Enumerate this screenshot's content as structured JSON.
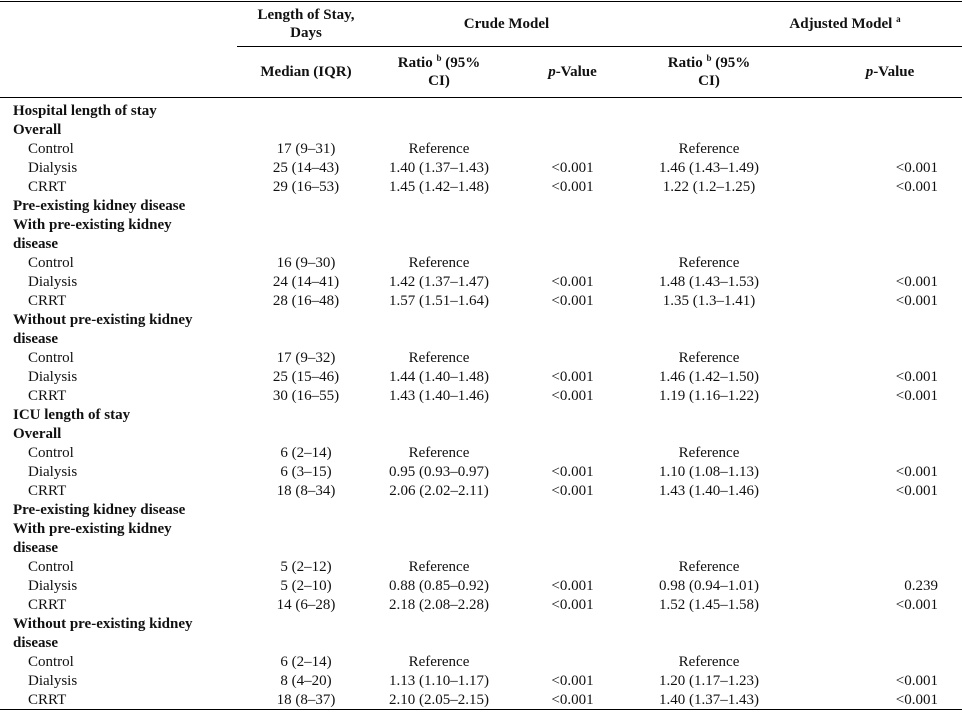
{
  "header": {
    "los_line1": "Length of Stay,",
    "los_line2": "Days",
    "crude_model": "Crude Model",
    "adjusted_model": "Adjusted Model",
    "adjusted_sup": "a",
    "median_iqr": "Median (IQR)",
    "ratio_label": "Ratio",
    "ratio_sup": "b",
    "ratio_line1_rest": "(95%",
    "ratio_line2": "CI)",
    "p_italic": "p",
    "p_rest": "-Value"
  },
  "rows": [
    {
      "label": "Hospital length of stay",
      "style": "sec"
    },
    {
      "label": "Overall",
      "style": "sec"
    },
    {
      "label": "Control",
      "style": "sub",
      "median": "17 (9–31)",
      "crude_ratio": "Reference",
      "crude_p": "",
      "adj_ratio": "Reference",
      "adj_p": ""
    },
    {
      "label": "Dialysis",
      "style": "sub",
      "median": "25 (14–43)",
      "crude_ratio": "1.40 (1.37–1.43)",
      "crude_p": "<0.001",
      "adj_ratio": "1.46 (1.43–1.49)",
      "adj_p": "<0.001"
    },
    {
      "label": "CRRT",
      "style": "sub",
      "median": "29 (16–53)",
      "crude_ratio": "1.45 (1.42–1.48)",
      "crude_p": "<0.001",
      "adj_ratio": "1.22 (1.2–1.25)",
      "adj_p": "<0.001"
    },
    {
      "label": "Pre-existing kidney disease",
      "style": "sec"
    },
    {
      "label": "With pre-existing kidney",
      "style": "sec"
    },
    {
      "label": "disease",
      "style": "sec"
    },
    {
      "label": "Control",
      "style": "sub",
      "median": "16 (9–30)",
      "crude_ratio": "Reference",
      "crude_p": "",
      "adj_ratio": "Reference",
      "adj_p": ""
    },
    {
      "label": "Dialysis",
      "style": "sub",
      "median": "24 (14–41)",
      "crude_ratio": "1.42 (1.37–1.47)",
      "crude_p": "<0.001",
      "adj_ratio": "1.48 (1.43–1.53)",
      "adj_p": "<0.001"
    },
    {
      "label": "CRRT",
      "style": "sub",
      "median": "28 (16–48)",
      "crude_ratio": "1.57 (1.51–1.64)",
      "crude_p": "<0.001",
      "adj_ratio": "1.35 (1.3–1.41)",
      "adj_p": "<0.001"
    },
    {
      "label": "Without pre-existing kidney",
      "style": "sec"
    },
    {
      "label": "disease",
      "style": "sec"
    },
    {
      "label": "Control",
      "style": "sub",
      "median": "17 (9–32)",
      "crude_ratio": "Reference",
      "crude_p": "",
      "adj_ratio": "Reference",
      "adj_p": ""
    },
    {
      "label": "Dialysis",
      "style": "sub",
      "median": "25 (15–46)",
      "crude_ratio": "1.44 (1.40–1.48)",
      "crude_p": "<0.001",
      "adj_ratio": "1.46 (1.42–1.50)",
      "adj_p": "<0.001"
    },
    {
      "label": "CRRT",
      "style": "sub",
      "median": "30 (16–55)",
      "crude_ratio": "1.43 (1.40–1.46)",
      "crude_p": "<0.001",
      "adj_ratio": "1.19 (1.16–1.22)",
      "adj_p": "<0.001"
    },
    {
      "label": "ICU length of stay",
      "style": "sec"
    },
    {
      "label": "Overall",
      "style": "sec"
    },
    {
      "label": "Control",
      "style": "sub",
      "median": "6 (2–14)",
      "crude_ratio": "Reference",
      "crude_p": "",
      "adj_ratio": "Reference",
      "adj_p": ""
    },
    {
      "label": "Dialysis",
      "style": "sub",
      "median": "6 (3–15)",
      "crude_ratio": "0.95 (0.93–0.97)",
      "crude_p": "<0.001",
      "adj_ratio": "1.10 (1.08–1.13)",
      "adj_p": "<0.001"
    },
    {
      "label": "CRRT",
      "style": "sub",
      "median": "18 (8–34)",
      "crude_ratio": "2.06 (2.02–2.11)",
      "crude_p": "<0.001",
      "adj_ratio": "1.43 (1.40–1.46)",
      "adj_p": "<0.001"
    },
    {
      "label": "Pre-existing kidney disease",
      "style": "sec"
    },
    {
      "label": "With pre-existing kidney",
      "style": "sec"
    },
    {
      "label": "disease",
      "style": "sec"
    },
    {
      "label": "Control",
      "style": "sub",
      "median": "5 (2–12)",
      "crude_ratio": "Reference",
      "crude_p": "",
      "adj_ratio": "Reference",
      "adj_p": ""
    },
    {
      "label": "Dialysis",
      "style": "sub",
      "median": "5 (2–10)",
      "crude_ratio": "0.88 (0.85–0.92)",
      "crude_p": "<0.001",
      "adj_ratio": "0.98 (0.94–1.01)",
      "adj_p": "0.239"
    },
    {
      "label": "CRRT",
      "style": "sub",
      "median": "14 (6–28)",
      "crude_ratio": "2.18 (2.08–2.28)",
      "crude_p": "<0.001",
      "adj_ratio": "1.52 (1.45–1.58)",
      "adj_p": "<0.001"
    },
    {
      "label": "Without pre-existing kidney",
      "style": "sec"
    },
    {
      "label": "disease",
      "style": "sec"
    },
    {
      "label": "Control",
      "style": "sub",
      "median": "6 (2–14)",
      "crude_ratio": "Reference",
      "crude_p": "",
      "adj_ratio": "Reference",
      "adj_p": ""
    },
    {
      "label": "Dialysis",
      "style": "sub",
      "median": "8 (4–20)",
      "crude_ratio": "1.13 (1.10–1.17)",
      "crude_p": "<0.001",
      "adj_ratio": "1.20 (1.17–1.23)",
      "adj_p": "<0.001"
    },
    {
      "label": "CRRT",
      "style": "sub",
      "median": "18 (8–37)",
      "crude_ratio": "2.10 (2.05–2.15)",
      "crude_p": "<0.001",
      "adj_ratio": "1.40 (1.37–1.43)",
      "adj_p": "<0.001"
    }
  ]
}
